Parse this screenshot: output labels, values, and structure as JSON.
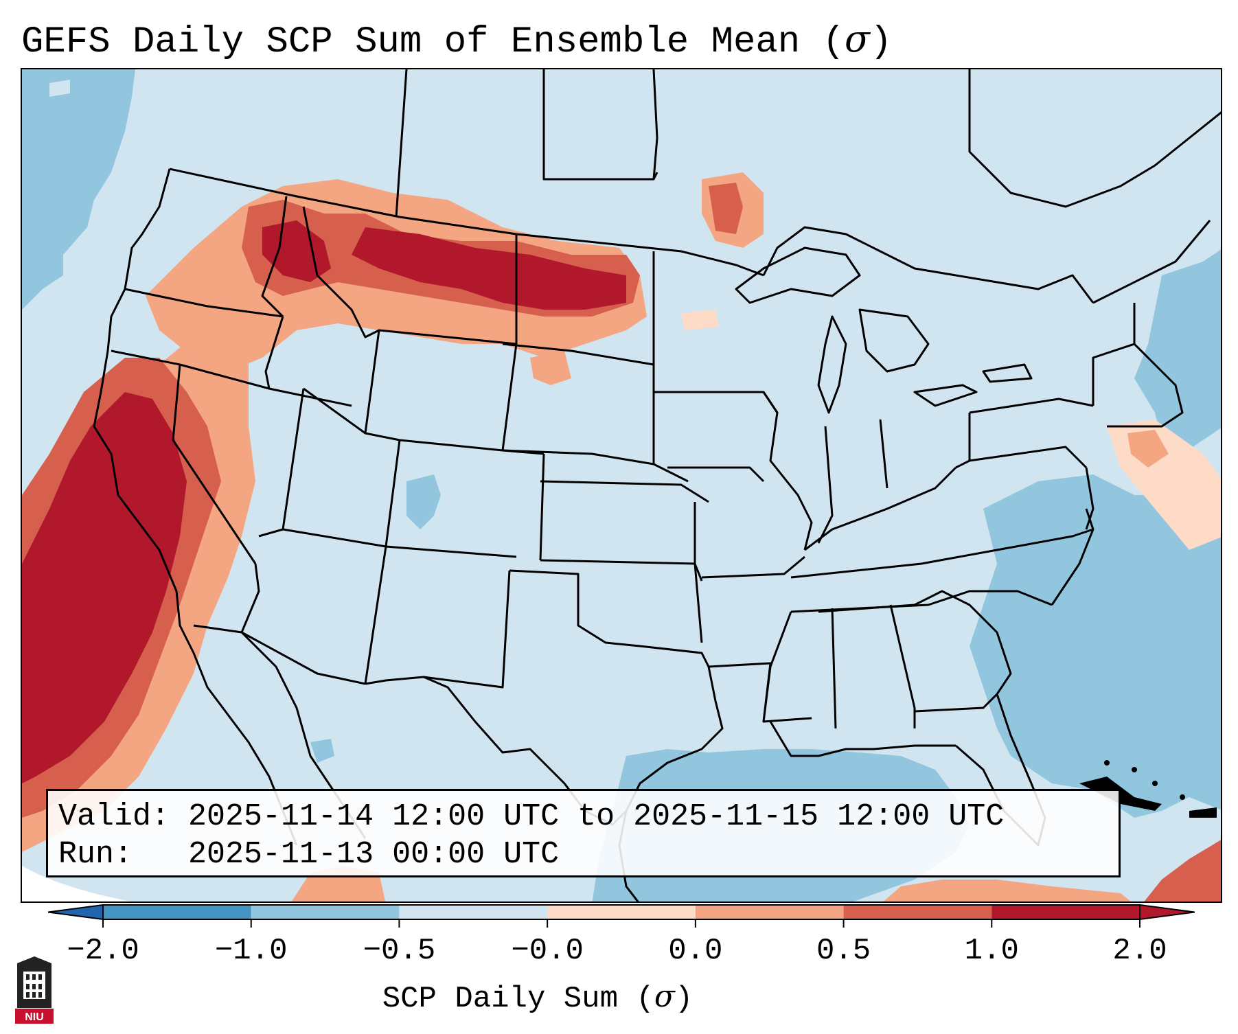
{
  "title": {
    "text": "GEFS Daily SCP Sum of Ensemble Mean (",
    "symbol": "σ",
    "close": ")"
  },
  "info": {
    "valid_line": "Valid: 2025-11-14 12:00 UTC to 2025-11-15 12:00 UTC",
    "run_line": "Run:   2025-11-13 00:00 UTC"
  },
  "colorbar": {
    "label_text": "SCP Daily Sum (",
    "label_symbol": "σ",
    "label_close": ")",
    "ticks": [
      "−2.0",
      "−1.0",
      "−0.5",
      "−0.0",
      "0.0",
      "0.5",
      "1.0",
      "2.0"
    ],
    "colors": [
      "#4393c3",
      "#92c5de",
      "#d1e5f0",
      "#f7f7f7",
      "#fddbc7",
      "#f4a582",
      "#d6604d",
      "#b2182b"
    ],
    "extend_low_color": "#2166ac",
    "extend_high_color": "#b2182b"
  },
  "map": {
    "background_color": "#d1e5f0",
    "ocean_negative_color": "#92c5de",
    "high_positive_color": "#b2182b",
    "positive_color": "#d6604d",
    "weak_positive_color": "#f4a582",
    "slight_positive_color": "#fddbc7"
  },
  "logo": {
    "text": "NIU",
    "color": "#c8102e"
  }
}
